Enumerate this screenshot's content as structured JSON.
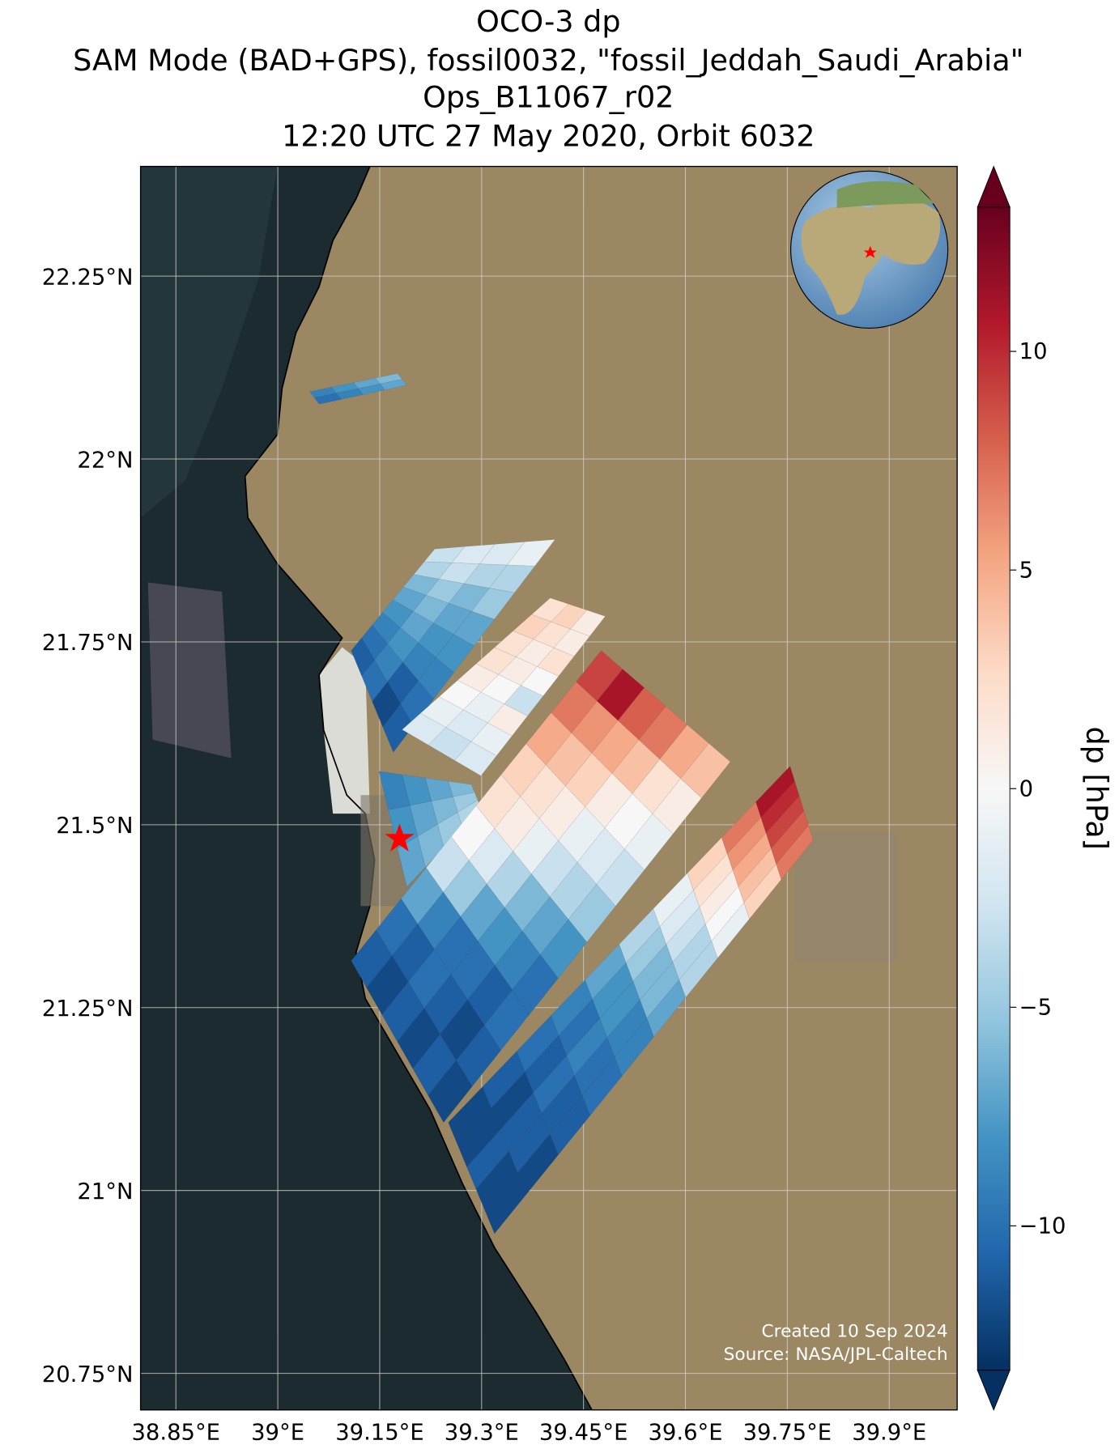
{
  "chart_data": {
    "type": "map",
    "title": [
      "OCO-3 dp",
      "SAM Mode (BAD+GPS), fossil0032, \"fossil_Jeddah_Saudi_Arabia\"",
      "Ops_B11067_r02",
      "12:20 UTC 27 May 2020, Orbit 6032"
    ],
    "xlim": [
      38.798,
      40.0
    ],
    "ylim": [
      20.7,
      22.4
    ],
    "xticks": [
      {
        "value": 38.85,
        "label": "38.85°E"
      },
      {
        "value": 39.0,
        "label": "39°E"
      },
      {
        "value": 39.15,
        "label": "39.15°E"
      },
      {
        "value": 39.3,
        "label": "39.3°E"
      },
      {
        "value": 39.45,
        "label": "39.45°E"
      },
      {
        "value": 39.6,
        "label": "39.6°E"
      },
      {
        "value": 39.75,
        "label": "39.75°E"
      },
      {
        "value": 39.9,
        "label": "39.9°E"
      }
    ],
    "yticks": [
      {
        "value": 22.25,
        "label": "22.25°N"
      },
      {
        "value": 22.0,
        "label": "22°N"
      },
      {
        "value": 21.75,
        "label": "21.75°N"
      },
      {
        "value": 21.5,
        "label": "21.5°N"
      },
      {
        "value": 21.25,
        "label": "21.25°N"
      },
      {
        "value": 21.0,
        "label": "21°N"
      },
      {
        "value": 20.75,
        "label": "20.75°N"
      }
    ],
    "grid": true,
    "colormap": "RdBu_r",
    "colorbar": {
      "label": "dp [hPa]",
      "lim": [
        -13.3,
        13.3
      ],
      "ticks": [
        10,
        5,
        0,
        {
          "value": -5,
          "label": "−5"
        },
        {
          "value": -10,
          "label": "−10"
        }
      ]
    },
    "swaths": [
      {
        "corners": [
          [
            39.047,
            22.092
          ],
          [
            39.061,
            22.075
          ],
          [
            39.176,
            22.117
          ],
          [
            39.19,
            22.101
          ]
        ],
        "values": [
          [
            -9,
            -10
          ],
          [
            -8,
            -9
          ],
          [
            -7,
            -8
          ],
          [
            -6,
            -7
          ]
        ]
      },
      {
        "corners": [
          [
            39.108,
            21.738
          ],
          [
            39.17,
            21.599
          ],
          [
            39.231,
            21.877
          ],
          [
            39.408,
            21.89
          ]
        ],
        "values": [
          [
            -11,
            -10,
            -12,
            -11
          ],
          [
            -10,
            -9,
            -11,
            -10
          ],
          [
            -9,
            -8,
            -9,
            -9
          ],
          [
            -8,
            -7,
            -8,
            -8
          ],
          [
            -7,
            -6,
            -7,
            -7
          ],
          [
            -6,
            -5,
            -6,
            -5
          ],
          [
            -4,
            -3,
            -4,
            -4
          ],
          [
            -3,
            -2,
            -2,
            -1
          ]
        ]
      },
      {
        "corners": [
          [
            39.183,
            21.63
          ],
          [
            39.299,
            21.567
          ],
          [
            39.401,
            21.81
          ],
          [
            39.482,
            21.785
          ]
        ],
        "values": [
          [
            -2,
            -3,
            -2
          ],
          [
            -1,
            -2,
            -1
          ],
          [
            0,
            -1,
            1
          ],
          [
            1,
            0,
            -3
          ],
          [
            2,
            1,
            0
          ],
          [
            2,
            1,
            2
          ],
          [
            3,
            2,
            1
          ],
          [
            2,
            3,
            1
          ]
        ]
      },
      {
        "corners": [
          [
            39.149,
            21.573
          ],
          [
            39.19,
            21.415
          ],
          [
            39.285,
            21.555
          ],
          [
            39.299,
            21.523
          ]
        ],
        "values": [
          [
            -9,
            -8,
            -7
          ],
          [
            -8,
            -7,
            -6
          ],
          [
            -7,
            -6,
            -5
          ],
          [
            -6,
            -5,
            -4
          ]
        ]
      },
      {
        "corners": [
          [
            39.108,
            21.314
          ],
          [
            39.244,
            21.093
          ],
          [
            39.476,
            21.738
          ],
          [
            39.666,
            21.586
          ]
        ],
        "values": [
          [
            -11,
            -12,
            -11,
            -12,
            -11,
            -12
          ],
          [
            -10,
            -11,
            -10,
            -11,
            -12,
            -11
          ],
          [
            -7,
            -9,
            -10,
            -10,
            -11,
            -10
          ],
          [
            -3,
            -5,
            -7,
            -8,
            -9,
            -10
          ],
          [
            0,
            -2,
            -4,
            -6,
            -7,
            -8
          ],
          [
            2,
            1,
            -1,
            -3,
            -4,
            -5
          ],
          [
            3,
            2,
            1,
            -1,
            -2,
            -3
          ],
          [
            5,
            4,
            3,
            1,
            0,
            -1
          ],
          [
            7,
            6,
            5,
            4,
            2,
            1
          ],
          [
            9,
            11,
            8,
            7,
            5,
            4
          ]
        ]
      },
      {
        "corners": [
          [
            39.251,
            21.093
          ],
          [
            39.319,
            20.941
          ],
          [
            39.754,
            21.58
          ],
          [
            39.788,
            21.479
          ]
        ],
        "values": [
          [
            -12,
            -12,
            -11,
            -12,
            -12
          ],
          [
            -11,
            -12,
            -11,
            -11,
            -12
          ],
          [
            -10,
            -11,
            -10,
            -11,
            -11
          ],
          [
            -9,
            -10,
            -9,
            -10,
            -10
          ],
          [
            -7,
            -8,
            -8,
            -9,
            -9
          ],
          [
            -4,
            -5,
            -6,
            -6,
            -7
          ],
          [
            -1,
            -2,
            -3,
            -4,
            -4
          ],
          [
            3,
            2,
            1,
            0,
            -1
          ],
          [
            7,
            6,
            5,
            4,
            3
          ],
          [
            11,
            10,
            9,
            8,
            7
          ]
        ]
      }
    ],
    "credits": [
      "Created 10 Sep 2024",
      "Source: NASA/JPL-Caltech"
    ]
  }
}
